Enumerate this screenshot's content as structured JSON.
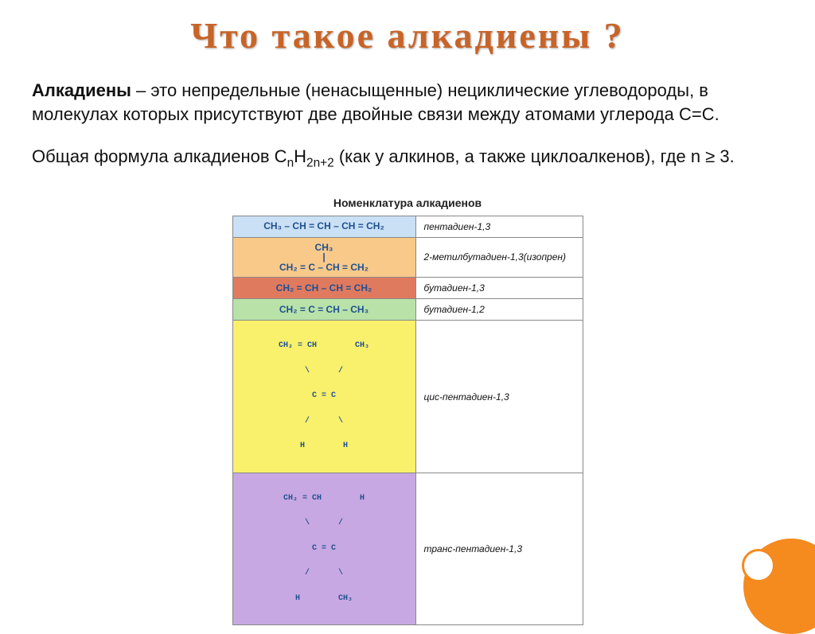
{
  "title": "Что такое алкадиены ?",
  "para1_prefix_bold": "Алкадиены",
  "para1_rest": " – это непредельные (ненасыщенные) нециклические углеводороды, в молекулах которых присутствуют две двойные связи между атомами углерода С=С.",
  "para2_a": "Общая формула алкадиенов C",
  "para2_sub1": "n",
  "para2_b": "H",
  "para2_sub2": "2n+2",
  "para2_c": " (как у алкинов, а также циклоалкенов), где n ≥ 3.",
  "table_caption": "Номенклатура алкадиенов",
  "rows": [
    {
      "formula_lines": [
        "CH₃ – CH = CH – CH = CH₂"
      ],
      "name": "пентадиен-1,3",
      "bg": "#c9e0f5"
    },
    {
      "formula_lines": [
        "CH₃",
        "|",
        "CH₂ = C – CH = CH₂"
      ],
      "name": "2-метилбутадиен-1,3(изопрен)",
      "bg": "#f9c98a"
    },
    {
      "formula_lines": [
        "CH₂ = CH – CH = CH₂"
      ],
      "name": "бутадиен-1,3",
      "bg": "#e07a5f"
    },
    {
      "formula_lines": [
        "CH₂ = C = CH – CH₃"
      ],
      "name": "бутадиен-1,2",
      "bg": "#b8e2a8"
    },
    {
      "formula_lines": [
        "CH₂ = CH        CH₃",
        "\\      /",
        "C = C",
        "/      \\",
        "H        H"
      ],
      "name": "цис-пентадиен-1,3",
      "bg": "#f9f06b"
    },
    {
      "formula_lines": [
        "CH₂ = CH        H",
        "\\      /",
        "C = C",
        "/      \\",
        "H        CH₃"
      ],
      "name": "транс-пентадиен-1,3",
      "bg": "#c8a8e2"
    }
  ],
  "colors": {
    "title": "#c86428",
    "formula_text": "#205090",
    "accent": "#f58a1f"
  },
  "typography": {
    "title_fontsize": 46,
    "body_fontsize": 22,
    "table_fontsize": 12
  }
}
